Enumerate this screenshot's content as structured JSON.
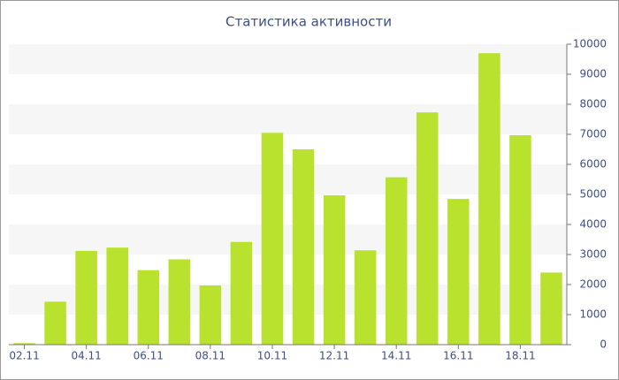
{
  "chart_data": {
    "type": "bar",
    "title": "Статистика активности",
    "categories": [
      "02.11",
      null,
      "04.11",
      null,
      "06.11",
      null,
      "08.11",
      null,
      "10.11",
      null,
      "12.11",
      null,
      "14.11",
      null,
      "16.11",
      null,
      "18.11",
      null
    ],
    "values": [
      50,
      1430,
      3120,
      3230,
      2480,
      2840,
      1970,
      3420,
      7050,
      6500,
      4970,
      3140,
      5570,
      7730,
      4850,
      9700,
      6970,
      2400
    ],
    "color": "#b9e22e",
    "ylim": [
      0,
      10000
    ],
    "yticks": [
      0,
      1000,
      2000,
      3000,
      4000,
      5000,
      6000,
      7000,
      8000,
      9000,
      10000
    ],
    "grid": true
  }
}
